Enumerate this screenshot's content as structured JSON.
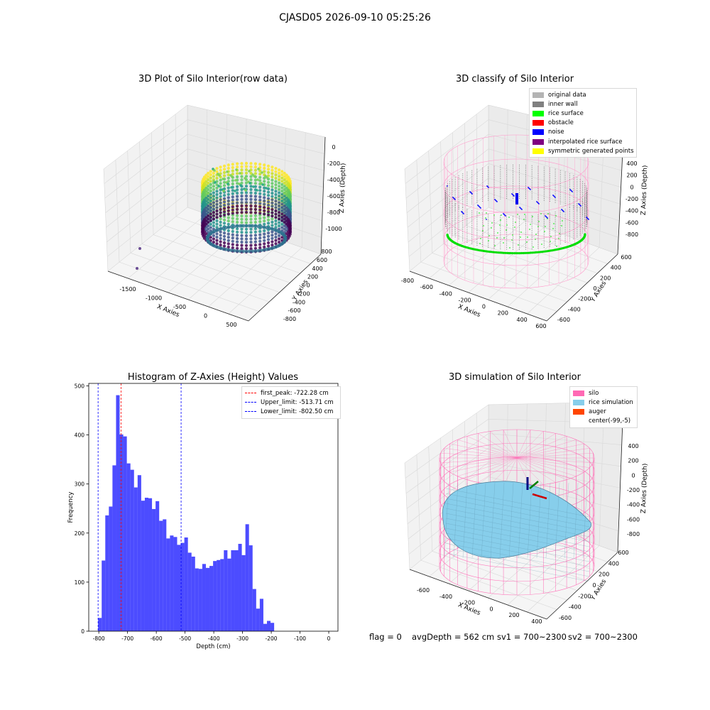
{
  "figure": {
    "suptitle": "CJASD05 2026-09-10 05:25:26",
    "footer": {
      "flag": "flag = 0",
      "avg": "avgDepth = 562 cm",
      "sv1": "sv1 = 700~2300",
      "sv2": "sv2 = 700~2300"
    }
  },
  "chart_data": [
    {
      "type": "scatter",
      "title": "3D Plot of Silo Interior(row data)",
      "xlabel": "X Axies",
      "ylabel": "Y Axies",
      "zlabel": "Z Axies (Depth)",
      "x_ticks": [
        "-1500",
        "-1000",
        "-500",
        "0",
        "500"
      ],
      "y_ticks": [
        "-800",
        "-600",
        "-400",
        "-200",
        "0",
        "200",
        "400",
        "600",
        "800"
      ],
      "z_ticks": [
        "0",
        "-200",
        "-400",
        "-600",
        "-800",
        "-1000"
      ],
      "colormap": "viridis",
      "x_range": [
        -1800,
        600
      ],
      "y_range": [
        -900,
        900
      ],
      "z_range": [
        -1100,
        0
      ]
    },
    {
      "type": "scatter",
      "title": "3D classify of Silo Interior",
      "xlabel": "X Axies",
      "ylabel": "Y Axies",
      "zlabel": "Z Axies (Depth)",
      "x_ticks": [
        "-800",
        "-600",
        "-400",
        "-200",
        "0",
        "200",
        "400",
        "600"
      ],
      "y_ticks": [
        "-600",
        "-400",
        "-200",
        "0",
        "200",
        "400",
        "600"
      ],
      "z_ticks": [
        "400",
        "200",
        "0",
        "-200",
        "-400",
        "-600",
        "-800"
      ],
      "legend_position": "upper right",
      "legend": [
        {
          "label": "original data",
          "color": "#b4b4b4"
        },
        {
          "label": "inner wall",
          "color": "#808080"
        },
        {
          "label": "rice surface",
          "color": "#00ff00"
        },
        {
          "label": "obstacle",
          "color": "#ff0000"
        },
        {
          "label": "noise",
          "color": "#0000ff"
        },
        {
          "label": "interpolated rice surface",
          "color": "#800080"
        },
        {
          "label": "symmetric generated points",
          "color": "#ffff00"
        }
      ]
    },
    {
      "type": "bar",
      "title": "Histogram of Z-Axies (Height) Values",
      "xlabel": "Depth (cm)",
      "ylabel": "Frequency",
      "xlim": [
        -835,
        32
      ],
      "ylim": [
        0,
        505
      ],
      "x_ticks": [
        -800,
        -700,
        -600,
        -500,
        -400,
        -300,
        -200,
        -100,
        0
      ],
      "y_ticks": [
        0,
        100,
        200,
        300,
        400,
        500
      ],
      "bin_start": -802.5,
      "bin_width": 12.5,
      "bar_color": "#0000ff",
      "bar_alpha": 0.7,
      "values": [
        27,
        144,
        236,
        254,
        338,
        481,
        401,
        397,
        342,
        329,
        293,
        318,
        266,
        272,
        271,
        249,
        265,
        225,
        228,
        189,
        195,
        192,
        176,
        180,
        191,
        160,
        152,
        128,
        127,
        137,
        129,
        133,
        143,
        145,
        147,
        165,
        148,
        165,
        165,
        178,
        155,
        218,
        175,
        86,
        46,
        66,
        15,
        21,
        17
      ],
      "vlines": [
        {
          "label": "first_peak: -722.28 cm",
          "x": -722.28,
          "color": "#ff0000"
        },
        {
          "label": "Upper_limit: -513.71 cm",
          "x": -513.71,
          "color": "#0000ff"
        },
        {
          "label": "Lower_limit: -802.50 cm",
          "x": -802.5,
          "color": "#0000ff"
        }
      ],
      "legend_position": "upper right"
    },
    {
      "type": "area",
      "title": "3D simulation of Silo Interior",
      "xlabel": "X Axies",
      "ylabel": "Y Axies",
      "zlabel": "Z Axies (Depth)",
      "x_ticks": [
        "-600",
        "-400",
        "-200",
        "0",
        "200",
        "400"
      ],
      "y_ticks": [
        "-600",
        "-400",
        "-200",
        "0",
        "200",
        "400",
        "600"
      ],
      "z_ticks": [
        "400",
        "200",
        "0",
        "-200",
        "-400",
        "-600",
        "-800"
      ],
      "legend_position": "upper right",
      "legend": [
        {
          "label": "silo",
          "color": "#ff69b4"
        },
        {
          "label": "rice simulation",
          "color": "#87ceeb"
        },
        {
          "label": "auger",
          "color": "#ff4500"
        },
        {
          "label": "center(-99,-5)",
          "color": ""
        }
      ]
    }
  ]
}
